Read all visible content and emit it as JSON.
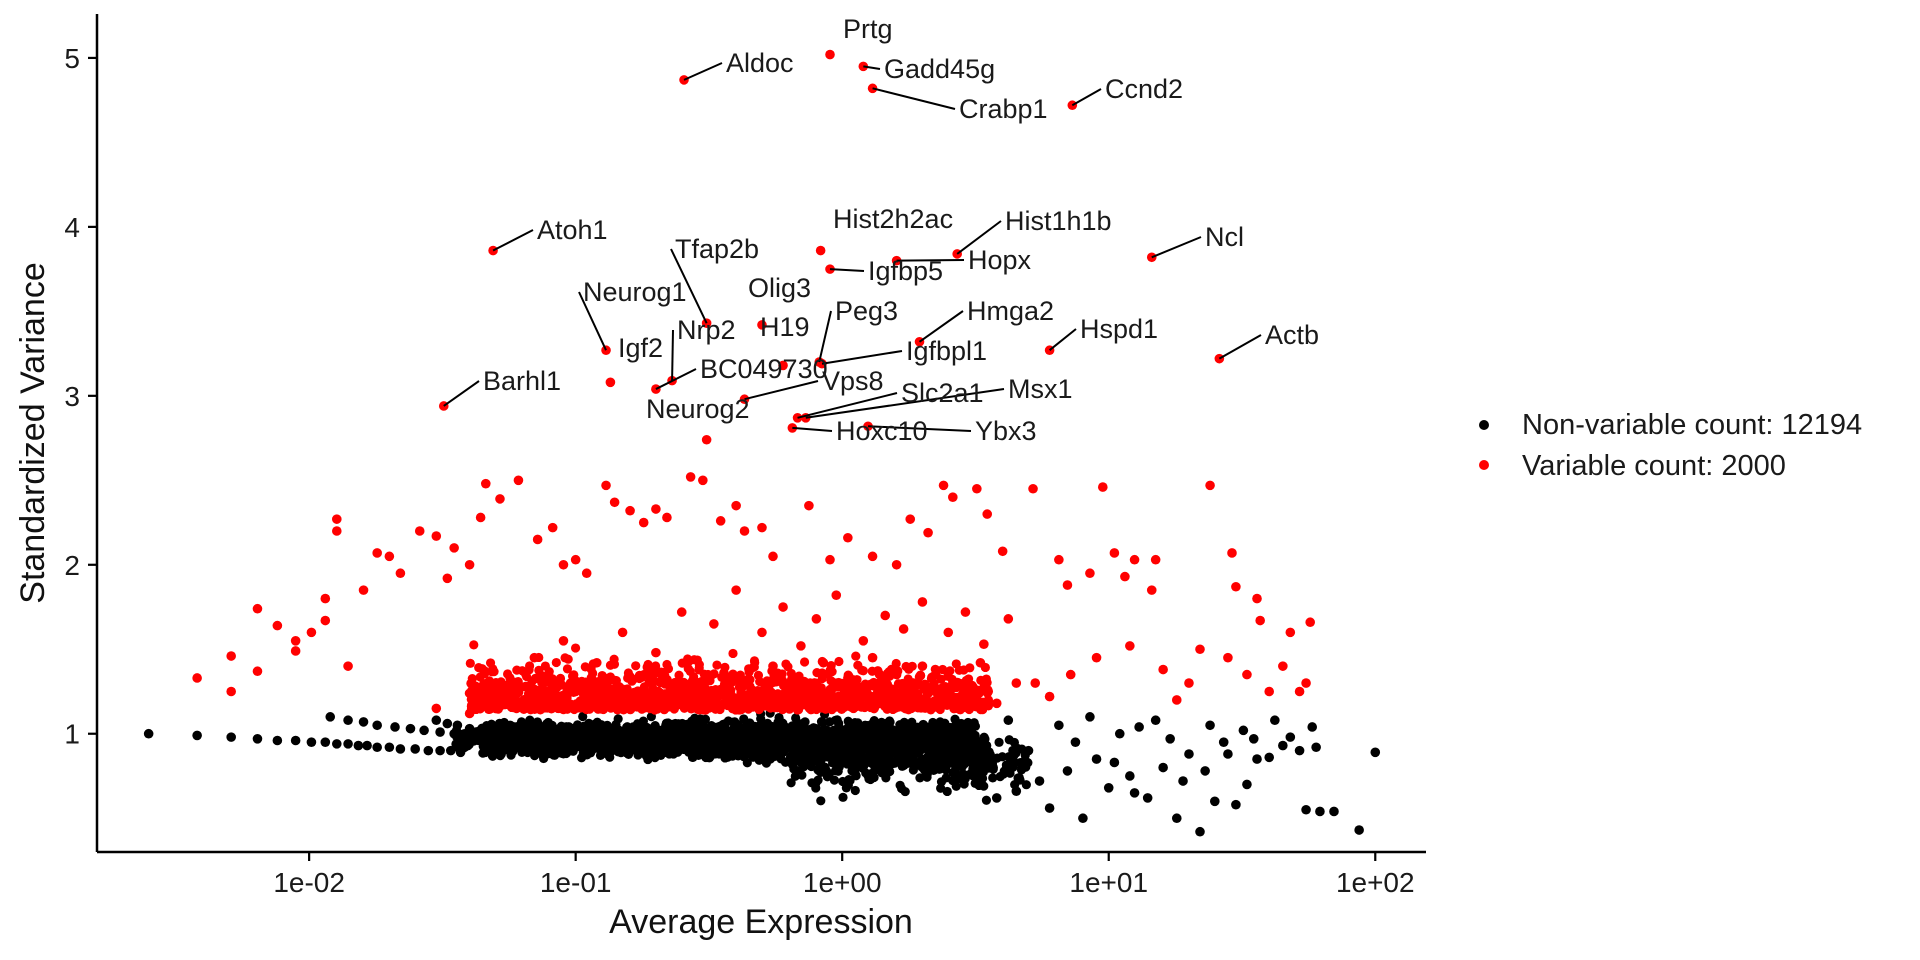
{
  "chart_data": {
    "type": "scatter",
    "xlabel": "Average Expression",
    "ylabel": "Standardized Variance",
    "x_scale": "log10",
    "x_ticks": [
      {
        "value": 0.01,
        "label": "1e-02"
      },
      {
        "value": 0.1,
        "label": "1e-01"
      },
      {
        "value": 1,
        "label": "1e+00"
      },
      {
        "value": 10,
        "label": "1e+01"
      },
      {
        "value": 100,
        "label": "1e+02"
      }
    ],
    "y_ticks": [
      {
        "value": 1,
        "label": "1"
      },
      {
        "value": 2,
        "label": "2"
      },
      {
        "value": 3,
        "label": "3"
      },
      {
        "value": 4,
        "label": "4"
      },
      {
        "value": 5,
        "label": "5"
      }
    ],
    "xlim": [
      0.0016,
      155
    ],
    "ylim": [
      0.3,
      5.26
    ],
    "grid": false,
    "legend_position": "right",
    "colors": {
      "non_variable": "#000000",
      "variable": "#ff0000",
      "axis": "#000000",
      "leader": "#000000"
    },
    "series": [
      {
        "name": "Non-variable count: 12194",
        "color": "#000000",
        "points": [
          [
            0.0025,
            1.0
          ],
          [
            0.0038,
            0.99
          ],
          [
            0.0051,
            0.98
          ],
          [
            0.0064,
            0.97
          ],
          [
            0.0076,
            0.96
          ],
          [
            0.0089,
            0.96
          ],
          [
            0.0102,
            0.95
          ],
          [
            0.0115,
            0.95
          ],
          [
            0.0127,
            0.94
          ],
          [
            0.014,
            0.94
          ],
          [
            0.0153,
            0.93
          ],
          [
            0.0165,
            0.93
          ],
          [
            0.018,
            0.92
          ],
          [
            0.02,
            0.92
          ],
          [
            0.022,
            0.91
          ],
          [
            0.025,
            0.91
          ],
          [
            0.028,
            0.9
          ],
          [
            0.031,
            0.9
          ],
          [
            0.034,
            0.9
          ],
          [
            0.037,
            0.89
          ],
          [
            0.012,
            1.1
          ],
          [
            0.014,
            1.08
          ],
          [
            0.016,
            1.07
          ],
          [
            0.018,
            1.05
          ],
          [
            0.021,
            1.04
          ],
          [
            0.024,
            1.03
          ],
          [
            0.027,
            1.02
          ],
          [
            0.031,
            1.01
          ],
          [
            0.035,
            1.0
          ],
          [
            0.039,
            0.99
          ],
          [
            0.03,
            1.08
          ],
          [
            0.033,
            1.06
          ],
          [
            0.036,
            1.05
          ],
          [
            0.04,
            1.03
          ],
          [
            0.044,
            1.02
          ],
          [
            27,
            0.95
          ],
          [
            32,
            1.02
          ],
          [
            40,
            0.86
          ],
          [
            45,
            0.93
          ],
          [
            52,
            0.9
          ],
          [
            58,
            1.04
          ],
          [
            60,
            0.92
          ],
          [
            30,
            0.58
          ],
          [
            22,
            0.42
          ],
          [
            18,
            0.5
          ],
          [
            14,
            0.62
          ],
          [
            10,
            0.68
          ],
          [
            8,
            0.5
          ],
          [
            6,
            0.56
          ],
          [
            12,
            0.75
          ],
          [
            16,
            0.8
          ],
          [
            20,
            0.88
          ],
          [
            24,
            1.05
          ],
          [
            35,
            0.97
          ],
          [
            42,
            1.08
          ],
          [
            55,
            0.55
          ],
          [
            62,
            0.54
          ],
          [
            70,
            0.54
          ],
          [
            87,
            0.43
          ],
          [
            100,
            0.89
          ],
          [
            9,
            0.85
          ],
          [
            7,
            0.78
          ],
          [
            5.5,
            0.72
          ],
          [
            5,
            0.9
          ],
          [
            11,
            1.0
          ],
          [
            13,
            1.04
          ],
          [
            17,
            0.97
          ],
          [
            19,
            0.72
          ],
          [
            25,
            0.6
          ],
          [
            4.5,
            0.66
          ],
          [
            3.8,
            0.62
          ],
          [
            4.2,
            1.08
          ],
          [
            6.5,
            1.05
          ],
          [
            8.5,
            1.1
          ],
          [
            15,
            1.08
          ],
          [
            36,
            0.85
          ],
          [
            48,
            0.98
          ],
          [
            28,
            0.88
          ],
          [
            7.5,
            0.95
          ],
          [
            10.5,
            0.83
          ],
          [
            12.5,
            0.65
          ],
          [
            23,
            0.78
          ],
          [
            33,
            0.7
          ]
        ]
      },
      {
        "name": "Variable count: 2000",
        "color": "#ff0000",
        "points": [
          [
            0.0038,
            1.33
          ],
          [
            0.0051,
            1.46
          ],
          [
            0.0051,
            1.25
          ],
          [
            0.0064,
            1.74
          ],
          [
            0.0064,
            1.37
          ],
          [
            0.0076,
            1.64
          ],
          [
            0.0089,
            1.55
          ],
          [
            0.0089,
            1.49
          ],
          [
            0.0102,
            1.6
          ],
          [
            0.0115,
            1.8
          ],
          [
            0.0115,
            1.67
          ],
          [
            0.0127,
            2.27
          ],
          [
            0.0127,
            2.2
          ],
          [
            0.014,
            1.4
          ],
          [
            0.016,
            1.85
          ],
          [
            0.018,
            2.07
          ],
          [
            0.02,
            2.05
          ],
          [
            0.022,
            1.95
          ],
          [
            0.026,
            2.2
          ],
          [
            0.03,
            2.17
          ],
          [
            0.033,
            1.92
          ],
          [
            0.035,
            2.1
          ],
          [
            0.04,
            2.0
          ],
          [
            0.044,
            2.28
          ],
          [
            0.046,
            2.48
          ],
          [
            0.052,
            2.39
          ],
          [
            0.061,
            2.5
          ],
          [
            0.072,
            2.15
          ],
          [
            0.082,
            2.22
          ],
          [
            0.09,
            2.0
          ],
          [
            0.1,
            2.03
          ],
          [
            0.11,
            1.95
          ],
          [
            0.13,
            2.47
          ],
          [
            0.14,
            2.37
          ],
          [
            0.16,
            2.32
          ],
          [
            0.18,
            2.25
          ],
          [
            0.2,
            2.33
          ],
          [
            0.22,
            2.28
          ],
          [
            0.27,
            2.52
          ],
          [
            0.3,
            2.5
          ],
          [
            0.35,
            2.26
          ],
          [
            0.4,
            2.35
          ],
          [
            0.43,
            2.2
          ],
          [
            0.5,
            2.22
          ],
          [
            0.55,
            2.05
          ],
          [
            0.75,
            2.35
          ],
          [
            0.9,
            2.03
          ],
          [
            1.05,
            2.16
          ],
          [
            1.3,
            2.05
          ],
          [
            1.6,
            2.0
          ],
          [
            1.8,
            2.27
          ],
          [
            2.1,
            2.19
          ],
          [
            2.4,
            2.47
          ],
          [
            2.6,
            2.4
          ],
          [
            3.2,
            2.45
          ],
          [
            3.5,
            2.3
          ],
          [
            4.0,
            2.08
          ],
          [
            5.2,
            2.45
          ],
          [
            6.5,
            2.03
          ],
          [
            7.0,
            1.88
          ],
          [
            8.5,
            1.95
          ],
          [
            9.5,
            2.46
          ],
          [
            10.5,
            2.07
          ],
          [
            11.5,
            1.93
          ],
          [
            12.5,
            2.03
          ],
          [
            14.5,
            1.85
          ],
          [
            15,
            2.03
          ],
          [
            24,
            2.47
          ],
          [
            29,
            2.07
          ],
          [
            30,
            1.87
          ],
          [
            36,
            1.8
          ],
          [
            37,
            1.67
          ],
          [
            57,
            1.66
          ],
          [
            45,
            1.4
          ],
          [
            48,
            1.6
          ],
          [
            28,
            1.45
          ],
          [
            22,
            1.5
          ],
          [
            20,
            1.3
          ],
          [
            33,
            1.35
          ],
          [
            40,
            1.25
          ],
          [
            18,
            1.2
          ],
          [
            52,
            1.25
          ],
          [
            55,
            1.3
          ],
          [
            16,
            1.38
          ],
          [
            12,
            1.52
          ],
          [
            9,
            1.45
          ],
          [
            7.2,
            1.35
          ],
          [
            5.3,
            1.3
          ],
          [
            0.03,
            1.15
          ],
          [
            0.05,
            1.3
          ],
          [
            0.07,
            1.45
          ],
          [
            0.09,
            1.55
          ],
          [
            0.12,
            1.42
          ],
          [
            0.15,
            1.6
          ],
          [
            0.2,
            1.48
          ],
          [
            0.25,
            1.72
          ],
          [
            0.33,
            1.65
          ],
          [
            0.4,
            1.85
          ],
          [
            0.5,
            1.6
          ],
          [
            0.6,
            1.75
          ],
          [
            0.7,
            1.52
          ],
          [
            0.8,
            1.68
          ],
          [
            0.95,
            1.82
          ],
          [
            1.2,
            1.55
          ],
          [
            1.45,
            1.7
          ],
          [
            1.7,
            1.62
          ],
          [
            2.0,
            1.78
          ],
          [
            2.5,
            1.6
          ],
          [
            2.9,
            1.72
          ],
          [
            3.4,
            1.53
          ],
          [
            4.2,
            1.68
          ],
          [
            0.045,
            1.18
          ],
          [
            0.055,
            1.22
          ],
          [
            0.065,
            1.28
          ],
          [
            0.08,
            1.2
          ],
          [
            0.1,
            1.25
          ],
          [
            0.13,
            1.3
          ],
          [
            0.17,
            1.22
          ],
          [
            0.22,
            1.32
          ],
          [
            0.28,
            1.25
          ],
          [
            0.36,
            1.36
          ],
          [
            0.45,
            1.28
          ],
          [
            0.55,
            1.4
          ],
          [
            0.68,
            1.3
          ],
          [
            0.85,
            1.42
          ],
          [
            1.05,
            1.33
          ],
          [
            1.3,
            1.45
          ],
          [
            1.6,
            1.35
          ],
          [
            2.0,
            1.4
          ],
          [
            2.6,
            1.3
          ],
          [
            3.3,
            1.42
          ],
          [
            4.5,
            1.3
          ],
          [
            6.0,
            1.22
          ],
          [
            0.04,
            1.12
          ],
          [
            0.06,
            1.15
          ],
          [
            0.11,
            1.17
          ],
          [
            0.19,
            1.15
          ],
          [
            0.32,
            1.18
          ],
          [
            0.58,
            1.16
          ],
          [
            0.92,
            1.19
          ],
          [
            1.5,
            1.16
          ],
          [
            2.3,
            1.2
          ],
          [
            3.8,
            1.18
          ]
        ],
        "labeled": [
          {
            "gene": "Prtg",
            "x": 0.9,
            "y": 5.02
          },
          {
            "gene": "Aldoc",
            "x": 0.255,
            "y": 4.87
          },
          {
            "gene": "Gadd45g",
            "x": 1.2,
            "y": 4.95
          },
          {
            "gene": "Crabp1",
            "x": 1.3,
            "y": 4.82
          },
          {
            "gene": "Ccnd2",
            "x": 7.3,
            "y": 4.72
          },
          {
            "gene": "Atoh1",
            "x": 0.049,
            "y": 3.86
          },
          {
            "gene": "Hist2h2ac",
            "x": 0.83,
            "y": 3.86
          },
          {
            "gene": "Hist1h1b",
            "x": 2.7,
            "y": 3.84
          },
          {
            "gene": "Ncl",
            "x": 14.5,
            "y": 3.82
          },
          {
            "gene": "Hopx",
            "x": 1.6,
            "y": 3.8
          },
          {
            "gene": "Igfbp5",
            "x": 0.9,
            "y": 3.75
          },
          {
            "gene": "Tfap2b",
            "x": 0.31,
            "y": 3.43
          },
          {
            "gene": "Olig3",
            "x": 0.5,
            "y": 3.42
          },
          {
            "gene": "Neurog1",
            "x": 0.13,
            "y": 3.27
          },
          {
            "gene": "Hmga2",
            "x": 1.95,
            "y": 3.32
          },
          {
            "gene": "Hspd1",
            "x": 6.0,
            "y": 3.27
          },
          {
            "gene": "Actb",
            "x": 26,
            "y": 3.22
          },
          {
            "gene": "H19",
            "x": 0.6,
            "y": 3.18
          },
          {
            "gene": "Peg3",
            "x": 0.82,
            "y": 3.2
          },
          {
            "gene": "Igfbpl1",
            "x": 0.84,
            "y": 3.19
          },
          {
            "gene": "Nrp2",
            "x": 0.23,
            "y": 3.09
          },
          {
            "gene": "Igf2",
            "x": 0.135,
            "y": 3.08
          },
          {
            "gene": "BC049730",
            "x": 0.2,
            "y": 3.04
          },
          {
            "gene": "Barhl1",
            "x": 0.032,
            "y": 2.94
          },
          {
            "gene": "Vps8",
            "x": 0.43,
            "y": 2.98
          },
          {
            "gene": "Slc2a1",
            "x": 0.68,
            "y": 2.87
          },
          {
            "gene": "Msx1",
            "x": 0.73,
            "y": 2.87
          },
          {
            "gene": "Neurog2",
            "x": 0.31,
            "y": 2.74
          },
          {
            "gene": "Hoxc10",
            "x": 0.65,
            "y": 2.81
          },
          {
            "gene": "Ybx3",
            "x": 1.25,
            "y": 2.82
          }
        ]
      }
    ]
  }
}
